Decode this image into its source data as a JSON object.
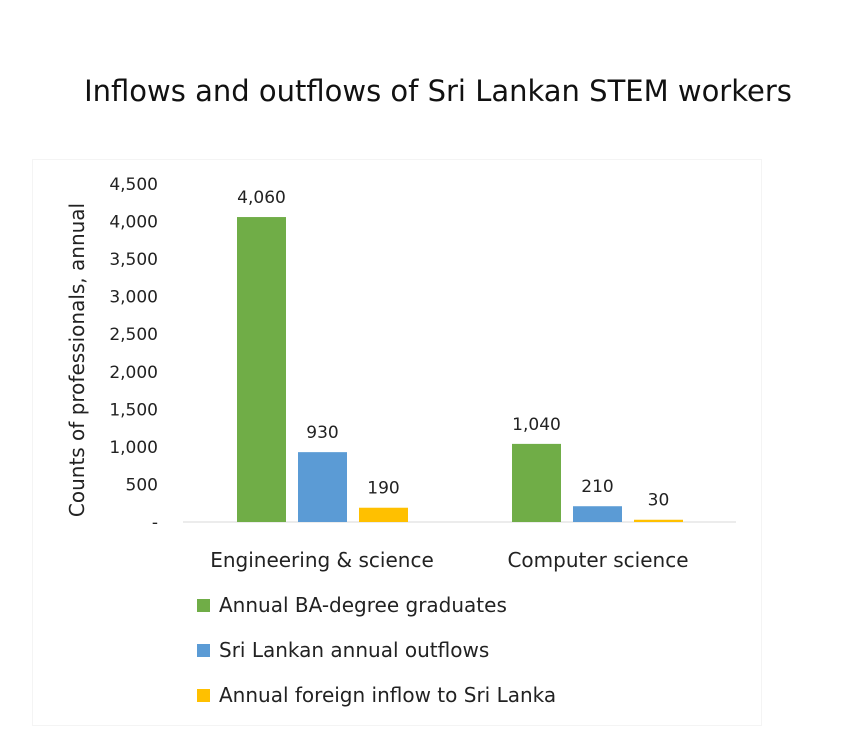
{
  "chart_data": {
    "type": "bar",
    "title": "Inflows and outflows of Sri Lankan STEM workers",
    "ylabel": "Counts of professionals, annual",
    "xlabel": "",
    "categories": [
      "Engineering & science",
      "Computer science"
    ],
    "series": [
      {
        "name": "Annual BA-degree graduates",
        "values": [
          4060,
          1040
        ],
        "labels": [
          "4,060",
          "1,040"
        ],
        "color": "#70ad47"
      },
      {
        "name": "Sri Lankan annual outflows",
        "values": [
          930,
          210
        ],
        "labels": [
          "930",
          "210"
        ],
        "color": "#5b9bd5"
      },
      {
        "name": "Annual foreign inflow to Sri Lanka",
        "values": [
          190,
          30
        ],
        "labels": [
          "190",
          "30"
        ],
        "color": "#ffc000"
      }
    ],
    "ylim": [
      0,
      4500
    ],
    "yticks": [
      {
        "value": 0,
        "label": "-"
      },
      {
        "value": 500,
        "label": "500"
      },
      {
        "value": 1000,
        "label": "1,000"
      },
      {
        "value": 1500,
        "label": "1,500"
      },
      {
        "value": 2000,
        "label": "2,000"
      },
      {
        "value": 2500,
        "label": "2,500"
      },
      {
        "value": 3000,
        "label": "3,000"
      },
      {
        "value": 3500,
        "label": "3,500"
      },
      {
        "value": 4000,
        "label": "4,000"
      },
      {
        "value": 4500,
        "label": "4,500"
      }
    ],
    "grid": false,
    "legend": "bottom"
  }
}
